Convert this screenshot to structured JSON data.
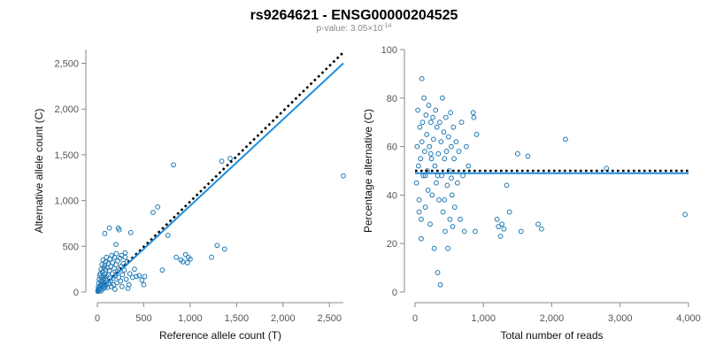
{
  "header": {
    "title": "rs9264621 - ENSG00000204525",
    "pvalue_prefix": "p-value: 3.05×10",
    "pvalue_exponent": "-14"
  },
  "colors": {
    "points": "#1f78b4",
    "fit_line": "#1f8de0",
    "expected_line": "#000000",
    "axis": "#888888",
    "tick_text": "#555555"
  },
  "chart_data": [
    {
      "type": "scatter",
      "title": "",
      "xlabel": "Reference allele count (T)",
      "ylabel": "Alternative allele count (C)",
      "xlim": [
        0,
        2650
      ],
      "ylim": [
        0,
        2650
      ],
      "x_ticks": [
        0,
        500,
        1000,
        1500,
        2000,
        2500
      ],
      "x_tick_labels": [
        "0",
        "500",
        "1,000",
        "1,500",
        "2,000",
        "2,500"
      ],
      "y_ticks": [
        0,
        500,
        1000,
        1500,
        2000,
        2500
      ],
      "y_tick_labels": [
        "0",
        "500",
        "1,000",
        "1,500",
        "2,000",
        "2,500"
      ],
      "lines": [
        {
          "name": "expected",
          "style": "dotted",
          "x": [
            0,
            2650
          ],
          "y": [
            0,
            2620
          ]
        },
        {
          "name": "fit",
          "style": "solid",
          "x": [
            0,
            2650
          ],
          "y": [
            0,
            2500
          ]
        }
      ],
      "points": [
        [
          5,
          8
        ],
        [
          8,
          15
        ],
        [
          10,
          40
        ],
        [
          12,
          60
        ],
        [
          15,
          100
        ],
        [
          18,
          20
        ],
        [
          20,
          140
        ],
        [
          22,
          30
        ],
        [
          25,
          180
        ],
        [
          28,
          50
        ],
        [
          30,
          200
        ],
        [
          32,
          70
        ],
        [
          35,
          120
        ],
        [
          38,
          10
        ],
        [
          40,
          250
        ],
        [
          42,
          90
        ],
        [
          45,
          160
        ],
        [
          48,
          30
        ],
        [
          50,
          300
        ],
        [
          52,
          110
        ],
        [
          55,
          220
        ],
        [
          58,
          60
        ],
        [
          60,
          350
        ],
        [
          62,
          130
        ],
        [
          65,
          180
        ],
        [
          68,
          80
        ],
        [
          70,
          260
        ],
        [
          72,
          40
        ],
        [
          75,
          150
        ],
        [
          78,
          290
        ],
        [
          80,
          100
        ],
        [
          82,
          200
        ],
        [
          85,
          60
        ],
        [
          88,
          330
        ],
        [
          90,
          140
        ],
        [
          92,
          240
        ],
        [
          95,
          80
        ],
        [
          98,
          380
        ],
        [
          100,
          170
        ],
        [
          105,
          270
        ],
        [
          110,
          50
        ],
        [
          115,
          310
        ],
        [
          120,
          190
        ],
        [
          125,
          90
        ],
        [
          130,
          230
        ],
        [
          135,
          360
        ],
        [
          140,
          120
        ],
        [
          145,
          280
        ],
        [
          150,
          60
        ],
        [
          155,
          400
        ],
        [
          160,
          200
        ],
        [
          165,
          320
        ],
        [
          170,
          150
        ],
        [
          175,
          80
        ],
        [
          180,
          260
        ],
        [
          185,
          380
        ],
        [
          190,
          30
        ],
        [
          195,
          180
        ],
        [
          200,
          300
        ],
        [
          205,
          420
        ],
        [
          210,
          100
        ],
        [
          215,
          220
        ],
        [
          220,
          340
        ],
        [
          225,
          700
        ],
        [
          230,
          160
        ],
        [
          235,
          680
        ],
        [
          240,
          250
        ],
        [
          245,
          370
        ],
        [
          250,
          120
        ],
        [
          255,
          280
        ],
        [
          260,
          400
        ],
        [
          265,
          60
        ],
        [
          270,
          190
        ],
        [
          280,
          310
        ],
        [
          290,
          240
        ],
        [
          300,
          380
        ],
        [
          310,
          140
        ],
        [
          320,
          330
        ],
        [
          330,
          40
        ],
        [
          340,
          80
        ],
        [
          350,
          200
        ],
        [
          360,
          650
        ],
        [
          380,
          160
        ],
        [
          400,
          250
        ],
        [
          420,
          170
        ],
        [
          450,
          180
        ],
        [
          480,
          130
        ],
        [
          500,
          80
        ],
        [
          510,
          170
        ],
        [
          130,
          700
        ],
        [
          80,
          640
        ],
        [
          200,
          520
        ],
        [
          300,
          430
        ],
        [
          600,
          870
        ],
        [
          650,
          930
        ],
        [
          700,
          240
        ],
        [
          760,
          620
        ],
        [
          820,
          1390
        ],
        [
          850,
          380
        ],
        [
          900,
          350
        ],
        [
          920,
          330
        ],
        [
          950,
          410
        ],
        [
          970,
          320
        ],
        [
          980,
          380
        ],
        [
          1000,
          360
        ],
        [
          1230,
          380
        ],
        [
          1290,
          510
        ],
        [
          1340,
          1430
        ],
        [
          1370,
          470
        ],
        [
          1430,
          1460
        ],
        [
          2650,
          1270
        ]
      ]
    },
    {
      "type": "scatter",
      "title": "",
      "xlabel": "Total number of reads",
      "ylabel": "Percentage alternative (C)",
      "xlim": [
        0,
        4000
      ],
      "ylim": [
        0,
        100
      ],
      "x_ticks": [
        0,
        1000,
        2000,
        3000,
        4000
      ],
      "x_tick_labels": [
        "0",
        "1,000",
        "2,000",
        "3,000",
        "4,000"
      ],
      "y_ticks": [
        0,
        20,
        40,
        60,
        80,
        100
      ],
      "y_tick_labels": [
        "0",
        "20",
        "40",
        "60",
        "80",
        "100"
      ],
      "lines": [
        {
          "name": "expected",
          "style": "dotted",
          "x": [
            0,
            4000
          ],
          "y": [
            50,
            50
          ]
        },
        {
          "name": "fit",
          "style": "solid",
          "x": [
            0,
            4000
          ],
          "y": [
            49,
            49
          ]
        }
      ],
      "points": [
        [
          20,
          45
        ],
        [
          30,
          60
        ],
        [
          40,
          75
        ],
        [
          50,
          52
        ],
        [
          60,
          38
        ],
        [
          70,
          68
        ],
        [
          80,
          55
        ],
        [
          90,
          30
        ],
        [
          100,
          88
        ],
        [
          100,
          62
        ],
        [
          110,
          70
        ],
        [
          120,
          48
        ],
        [
          130,
          80
        ],
        [
          140,
          58
        ],
        [
          150,
          35
        ],
        [
          160,
          73
        ],
        [
          170,
          65
        ],
        [
          180,
          50
        ],
        [
          190,
          42
        ],
        [
          200,
          77
        ],
        [
          210,
          60
        ],
        [
          220,
          28
        ],
        [
          230,
          70
        ],
        [
          240,
          55
        ],
        [
          250,
          40
        ],
        [
          260,
          72
        ],
        [
          270,
          63
        ],
        [
          280,
          18
        ],
        [
          290,
          52
        ],
        [
          300,
          75
        ],
        [
          310,
          45
        ],
        [
          320,
          68
        ],
        [
          330,
          8
        ],
        [
          340,
          57
        ],
        [
          350,
          38
        ],
        [
          360,
          70
        ],
        [
          370,
          3
        ],
        [
          380,
          62
        ],
        [
          390,
          48
        ],
        [
          400,
          80
        ],
        [
          410,
          33
        ],
        [
          420,
          66
        ],
        [
          430,
          55
        ],
        [
          440,
          25
        ],
        [
          450,
          72
        ],
        [
          460,
          58
        ],
        [
          470,
          44
        ],
        [
          480,
          18
        ],
        [
          490,
          64
        ],
        [
          500,
          50
        ],
        [
          510,
          30
        ],
        [
          520,
          74
        ],
        [
          530,
          60
        ],
        [
          540,
          40
        ],
        [
          550,
          27
        ],
        [
          560,
          68
        ],
        [
          570,
          55
        ],
        [
          580,
          35
        ],
        [
          600,
          62
        ],
        [
          620,
          45
        ],
        [
          640,
          58
        ],
        [
          660,
          30
        ],
        [
          680,
          70
        ],
        [
          700,
          48
        ],
        [
          720,
          25
        ],
        [
          750,
          60
        ],
        [
          780,
          52
        ],
        [
          850,
          74
        ],
        [
          860,
          72
        ],
        [
          900,
          65
        ],
        [
          880,
          25
        ],
        [
          60,
          33
        ],
        [
          90,
          22
        ],
        [
          150,
          48
        ],
        [
          230,
          57
        ],
        [
          330,
          48
        ],
        [
          430,
          38
        ],
        [
          530,
          47
        ],
        [
          1200,
          30
        ],
        [
          1220,
          27
        ],
        [
          1250,
          23
        ],
        [
          1270,
          28
        ],
        [
          1300,
          26
        ],
        [
          1340,
          44
        ],
        [
          1380,
          33
        ],
        [
          1500,
          57
        ],
        [
          1550,
          25
        ],
        [
          1650,
          56
        ],
        [
          1800,
          28
        ],
        [
          1850,
          26
        ],
        [
          2200,
          63
        ],
        [
          2800,
          51
        ],
        [
          3950,
          32
        ]
      ]
    }
  ]
}
